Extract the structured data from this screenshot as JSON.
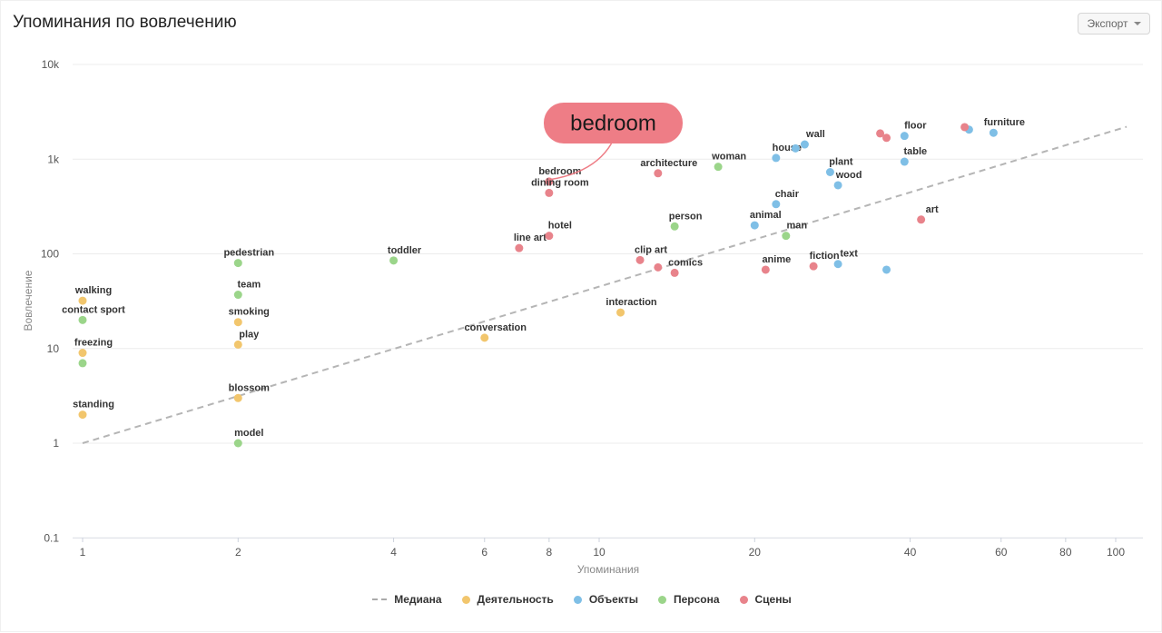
{
  "header": {
    "title": "Упоминания по вовлечению",
    "export_label": "Экспорт"
  },
  "chart_data": {
    "type": "scatter",
    "xlabel": "Упоминания",
    "ylabel": "Вовлечение",
    "x_scale": "log",
    "y_scale": "log",
    "xlim": [
      0.9,
      110
    ],
    "ylim": [
      0.1,
      10000
    ],
    "x_ticks": [
      {
        "v": 1,
        "label": "1"
      },
      {
        "v": 2,
        "label": "2"
      },
      {
        "v": 4,
        "label": "4"
      },
      {
        "v": 6,
        "label": "6"
      },
      {
        "v": 8,
        "label": "8"
      },
      {
        "v": 10,
        "label": "10"
      },
      {
        "v": 20,
        "label": "20"
      },
      {
        "v": 40,
        "label": "40"
      },
      {
        "v": 60,
        "label": "60"
      },
      {
        "v": 80,
        "label": "80"
      },
      {
        "v": 100,
        "label": "100"
      }
    ],
    "y_ticks": [
      {
        "v": 0.1,
        "label": "0.1"
      },
      {
        "v": 1,
        "label": "1"
      },
      {
        "v": 10,
        "label": "10"
      },
      {
        "v": 100,
        "label": "100"
      },
      {
        "v": 1000,
        "label": "1k"
      },
      {
        "v": 10000,
        "label": "10k"
      }
    ],
    "median_line": {
      "name": "Медиана",
      "from": [
        1,
        1
      ],
      "to": [
        105,
        2200
      ],
      "color": "#b5b5b5"
    },
    "highlight": {
      "label": "bedroom",
      "x": 8,
      "y": 580,
      "color": "#ee7d86"
    },
    "series": [
      {
        "name": "Деятельность",
        "color": "#f2c66d",
        "points": [
          {
            "x": 1,
            "y": 32,
            "label": "walking"
          },
          {
            "x": 1,
            "y": 9,
            "label": "freezing"
          },
          {
            "x": 1,
            "y": 2,
            "label": "standing"
          },
          {
            "x": 2,
            "y": 19,
            "label": "smoking"
          },
          {
            "x": 2,
            "y": 11,
            "label": "play"
          },
          {
            "x": 2,
            "y": 3,
            "label": "blossom"
          },
          {
            "x": 6,
            "y": 13,
            "label": "conversation"
          },
          {
            "x": 11,
            "y": 24,
            "label": "interaction"
          }
        ]
      },
      {
        "name": "Объекты",
        "color": "#7fbfe6",
        "points": [
          {
            "x": 22,
            "y": 1030,
            "label": "house"
          },
          {
            "x": 24,
            "y": 1300,
            "label": ""
          },
          {
            "x": 25,
            "y": 1430,
            "label": "wall"
          },
          {
            "x": 28,
            "y": 730,
            "label": "plant"
          },
          {
            "x": 29,
            "y": 530,
            "label": "wood"
          },
          {
            "x": 22,
            "y": 335,
            "label": "chair"
          },
          {
            "x": 20,
            "y": 200,
            "label": "animal"
          },
          {
            "x": 29,
            "y": 78,
            "label": "text"
          },
          {
            "x": 36,
            "y": 68,
            "label": ""
          },
          {
            "x": 39,
            "y": 1760,
            "label": "floor"
          },
          {
            "x": 39,
            "y": 940,
            "label": "table"
          },
          {
            "x": 52,
            "y": 2050,
            "label": ""
          },
          {
            "x": 58,
            "y": 1900,
            "label": "furniture"
          }
        ]
      },
      {
        "name": "Персона",
        "color": "#9bd58a",
        "points": [
          {
            "x": 1,
            "y": 20,
            "label": "contact sport"
          },
          {
            "x": 1,
            "y": 7,
            "label": ""
          },
          {
            "x": 2,
            "y": 80,
            "label": "pedestrian"
          },
          {
            "x": 2,
            "y": 37,
            "label": "team"
          },
          {
            "x": 2,
            "y": 1,
            "label": "model"
          },
          {
            "x": 4,
            "y": 85,
            "label": "toddler"
          },
          {
            "x": 14,
            "y": 195,
            "label": "person"
          },
          {
            "x": 17,
            "y": 830,
            "label": "woman"
          },
          {
            "x": 23,
            "y": 155,
            "label": "man"
          }
        ]
      },
      {
        "name": "Сцены",
        "color": "#e8838b",
        "points": [
          {
            "x": 7,
            "y": 115,
            "label": "line art"
          },
          {
            "x": 8,
            "y": 155,
            "label": "hotel"
          },
          {
            "x": 8,
            "y": 580,
            "label": "bedroom"
          },
          {
            "x": 8,
            "y": 440,
            "label": "dining room"
          },
          {
            "x": 12,
            "y": 86,
            "label": "clip art"
          },
          {
            "x": 13,
            "y": 72,
            "label": ""
          },
          {
            "x": 14,
            "y": 63,
            "label": "comics"
          },
          {
            "x": 13,
            "y": 710,
            "label": "architecture"
          },
          {
            "x": 21,
            "y": 68,
            "label": "anime"
          },
          {
            "x": 26,
            "y": 74,
            "label": "fiction"
          },
          {
            "x": 35,
            "y": 1870,
            "label": ""
          },
          {
            "x": 36,
            "y": 1680,
            "label": ""
          },
          {
            "x": 42,
            "y": 230,
            "label": "art"
          },
          {
            "x": 51,
            "y": 2180,
            "label": ""
          }
        ]
      }
    ]
  }
}
